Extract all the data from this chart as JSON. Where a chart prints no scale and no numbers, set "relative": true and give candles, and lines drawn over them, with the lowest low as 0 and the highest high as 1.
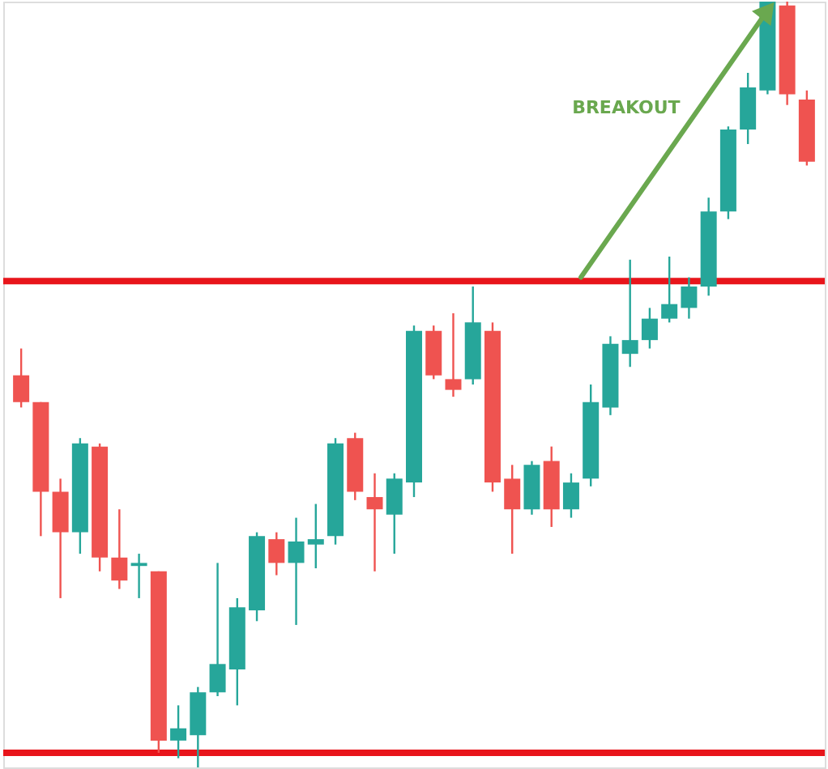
{
  "chart_data": {
    "type": "candlestick",
    "relative": true,
    "tick_labels": false,
    "grid": false,
    "categories": [
      null,
      null,
      null,
      null,
      null,
      null,
      null,
      null,
      null,
      null,
      null,
      null,
      null,
      null,
      null,
      null,
      null,
      null,
      null,
      null,
      null,
      null,
      null,
      null,
      null,
      null,
      null,
      null,
      null,
      null,
      null,
      null,
      null,
      null,
      null,
      null,
      null,
      null,
      null,
      null,
      null
    ],
    "ohlc": [
      [
        0.512,
        0.547,
        0.47,
        0.477
      ],
      [
        0.477,
        0.477,
        0.302,
        0.36
      ],
      [
        0.36,
        0.377,
        0.221,
        0.307
      ],
      [
        0.307,
        0.43,
        0.279,
        0.423
      ],
      [
        0.419,
        0.423,
        0.256,
        0.274
      ],
      [
        0.274,
        0.337,
        0.233,
        0.244
      ],
      [
        0.263,
        0.279,
        0.221,
        0.267
      ],
      [
        0.256,
        0.256,
        0.019,
        0.035
      ],
      [
        0.035,
        0.081,
        0.012,
        0.051
      ],
      [
        0.042,
        0.105,
        0.0,
        0.098
      ],
      [
        0.098,
        0.267,
        0.093,
        0.135
      ],
      [
        0.128,
        0.221,
        0.081,
        0.209
      ],
      [
        0.205,
        0.307,
        0.191,
        0.302
      ],
      [
        0.298,
        0.307,
        0.251,
        0.267
      ],
      [
        0.267,
        0.326,
        0.186,
        0.295
      ],
      [
        0.291,
        0.344,
        0.26,
        0.298
      ],
      [
        0.302,
        0.43,
        0.291,
        0.423
      ],
      [
        0.43,
        0.437,
        0.349,
        0.36
      ],
      [
        0.353,
        0.384,
        0.256,
        0.337
      ],
      [
        0.33,
        0.384,
        0.279,
        0.377
      ],
      [
        0.372,
        0.577,
        0.353,
        0.57
      ],
      [
        0.57,
        0.577,
        0.507,
        0.512
      ],
      [
        0.507,
        0.593,
        0.484,
        0.493
      ],
      [
        0.507,
        0.628,
        0.5,
        0.581
      ],
      [
        0.57,
        0.581,
        0.36,
        0.372
      ],
      [
        0.377,
        0.395,
        0.279,
        0.337
      ],
      [
        0.337,
        0.4,
        0.33,
        0.395
      ],
      [
        0.4,
        0.419,
        0.314,
        0.337
      ],
      [
        0.337,
        0.384,
        0.326,
        0.372
      ],
      [
        0.377,
        0.5,
        0.367,
        0.477
      ],
      [
        0.47,
        0.563,
        0.46,
        0.553
      ],
      [
        0.54,
        0.663,
        0.523,
        0.558
      ],
      [
        0.558,
        0.6,
        0.547,
        0.586
      ],
      [
        0.586,
        0.667,
        0.581,
        0.605
      ],
      [
        0.6,
        0.64,
        0.586,
        0.628
      ],
      [
        0.628,
        0.744,
        0.616,
        0.726
      ],
      [
        0.726,
        0.837,
        0.716,
        0.833
      ],
      [
        0.833,
        0.907,
        0.814,
        0.888
      ],
      [
        0.884,
        1.0,
        0.879,
        1.0
      ],
      [
        0.995,
        1.0,
        0.865,
        0.879
      ],
      [
        0.872,
        0.884,
        0.786,
        0.791
      ]
    ],
    "colors": [
      "#ef5350",
      "#ef5350",
      "#ef5350",
      "#26a69a",
      "#ef5350",
      "#ef5350",
      "#26a69a",
      "#ef5350",
      "#26a69a",
      "#26a69a",
      "#26a69a",
      "#26a69a",
      "#26a69a",
      "#ef5350",
      "#26a69a",
      "#26a69a",
      "#26a69a",
      "#ef5350",
      "#ef5350",
      "#26a69a",
      "#26a69a",
      "#ef5350",
      "#ef5350",
      "#26a69a",
      "#ef5350",
      "#ef5350",
      "#26a69a",
      "#ef5350",
      "#26a69a",
      "#26a69a",
      "#26a69a",
      "#26a69a",
      "#26a69a",
      "#26a69a",
      "#26a69a",
      "#26a69a",
      "#26a69a",
      "#26a69a",
      "#26a69a",
      "#ef5350",
      "#ef5350"
    ],
    "ref_lines": [
      {
        "axis": "y",
        "value": 0.635,
        "label": null,
        "color": "#e8151b"
      },
      {
        "axis": "y",
        "value": 0.019,
        "label": null,
        "color": "#e8151b"
      }
    ],
    "annotations": [
      "BREAKOUT"
    ]
  }
}
